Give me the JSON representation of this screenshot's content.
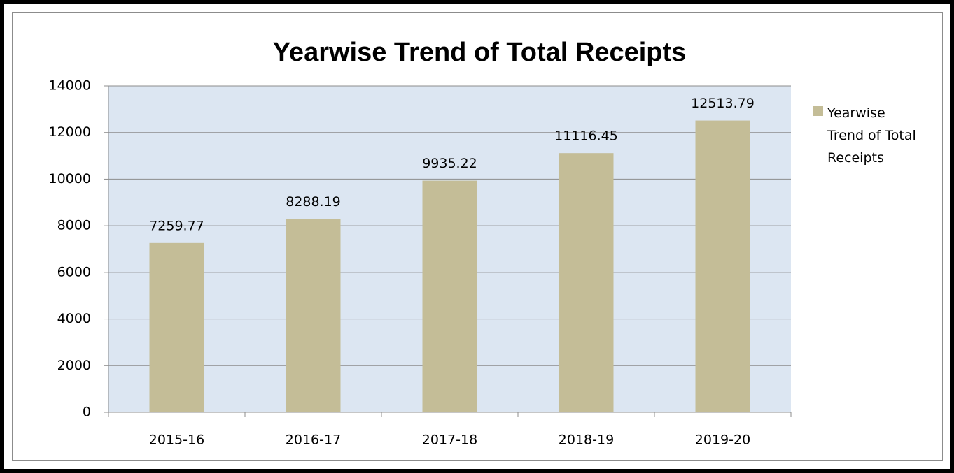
{
  "chart_data": {
    "type": "bar",
    "title": "Yearwise Trend of Total Receipts",
    "categories": [
      "2015-16",
      "2016-17",
      "2017-18",
      "2018-19",
      "2019-20"
    ],
    "series": [
      {
        "name": "Yearwise Trend of Total Receipts",
        "color": "#c4bd97",
        "values": [
          7259.77,
          8288.19,
          9935.22,
          11116.45,
          12513.79
        ]
      }
    ],
    "ylim": [
      0,
      14000
    ],
    "yticks": [
      0,
      2000,
      4000,
      6000,
      8000,
      10000,
      12000,
      14000
    ],
    "grid": true,
    "legend": "right"
  }
}
